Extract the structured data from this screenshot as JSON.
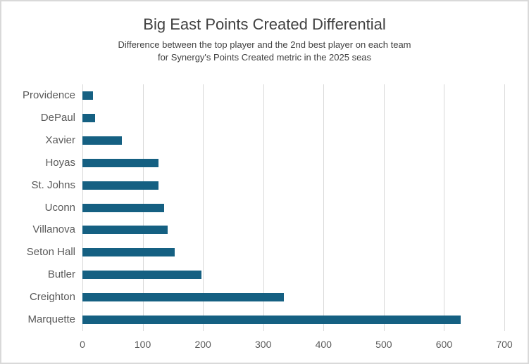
{
  "chart_data": {
    "type": "bar",
    "orientation": "horizontal",
    "title": "Big East Points Created Differential",
    "subtitle_lines": [
      "Difference between the top player and the 2nd best player on each team",
      "for Synergy's Points Created metric in the 2025 seas"
    ],
    "categories": [
      "Providence",
      "DePaul",
      "Xavier",
      "Hoyas",
      "St. Johns",
      "Uconn",
      "Villanova",
      "Seton Hall",
      "Butler",
      "Creighton",
      "Marquette"
    ],
    "values": [
      17,
      21,
      65,
      126,
      126,
      135,
      141,
      153,
      197,
      334,
      627
    ],
    "xlabel": "",
    "ylabel": "",
    "xlim": [
      0,
      700
    ],
    "xticks": [
      0,
      100,
      200,
      300,
      400,
      500,
      600,
      700
    ],
    "grid": "vertical",
    "legend": "none",
    "colors": {
      "bar": "#156082",
      "gridline": "#D9D9D9",
      "axis_text": "#595959",
      "title_text": "#404040",
      "subtitle_text": "#404040",
      "canvas_border": "#D9D9D9",
      "background": "#FFFFFF"
    }
  }
}
